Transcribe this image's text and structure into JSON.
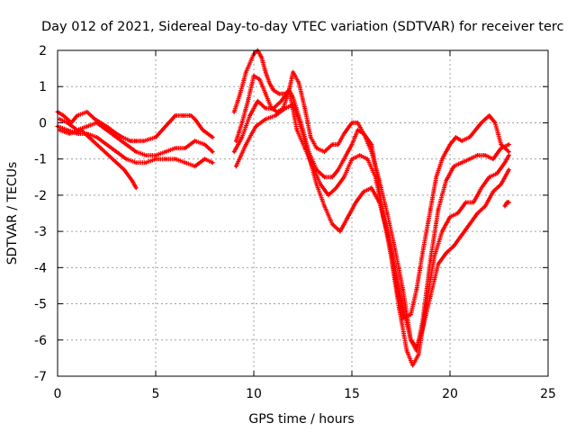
{
  "chart_data": {
    "type": "scatter",
    "title": "Day 012 of 2021, Sidereal Day-to-day VTEC variation (SDTVAR) for receiver terc",
    "xlabel": "GPS time / hours",
    "ylabel": "SDTVAR / TECUs",
    "xlim": [
      0,
      25
    ],
    "ylim": [
      -7,
      2
    ],
    "x_ticks": [
      0,
      5,
      10,
      15,
      20,
      25
    ],
    "y_ticks": [
      -7,
      -6,
      -5,
      -4,
      -3,
      -2,
      -1,
      0,
      1,
      2
    ],
    "grid": true,
    "marker": "+",
    "color": "#ff0000",
    "series": [
      {
        "x": [
          0.0,
          0.3,
          0.7,
          1.0,
          1.5,
          1.9,
          2.5,
          3.0,
          3.3,
          3.7,
          4.0,
          4.4,
          5.0,
          5.5,
          6.0,
          6.4,
          6.8,
          7.0,
          7.4,
          7.9
        ],
        "y": [
          0.3,
          0.2,
          0.0,
          0.2,
          0.3,
          0.1,
          -0.1,
          -0.3,
          -0.4,
          -0.5,
          -0.5,
          -0.5,
          -0.4,
          -0.1,
          0.2,
          0.2,
          0.2,
          0.1,
          -0.2,
          -0.4
        ]
      },
      {
        "x": [
          0.1,
          0.5,
          1.0,
          1.5,
          2.0,
          2.5,
          3.0,
          3.5,
          4.0,
          4.5,
          5.0,
          5.5,
          6.0,
          6.5,
          7.0,
          7.5,
          7.9
        ],
        "y": [
          0.1,
          0.0,
          -0.2,
          -0.1,
          0.0,
          -0.2,
          -0.4,
          -0.6,
          -0.8,
          -0.9,
          -0.9,
          -0.8,
          -0.7,
          -0.7,
          -0.5,
          -0.6,
          -0.8
        ]
      },
      {
        "x": [
          0.0,
          0.5,
          1.0,
          1.5,
          2.0,
          2.5,
          3.0,
          3.5,
          4.0,
          4.5,
          5.0,
          5.5,
          6.0,
          6.5,
          7.0,
          7.5,
          7.9
        ],
        "y": [
          -0.1,
          -0.2,
          -0.3,
          -0.3,
          -0.4,
          -0.6,
          -0.8,
          -1.0,
          -1.1,
          -1.1,
          -1.0,
          -1.0,
          -1.0,
          -1.1,
          -1.2,
          -1.0,
          -1.1
        ]
      },
      {
        "x": [
          0.1,
          0.6,
          1.2,
          1.8,
          2.4,
          3.0,
          3.4,
          3.8,
          4.0
        ],
        "y": [
          -0.2,
          -0.3,
          -0.2,
          -0.5,
          -0.8,
          -1.1,
          -1.3,
          -1.6,
          -1.8
        ]
      },
      {
        "x": [
          9.0,
          9.3,
          9.6,
          10.0,
          10.2,
          10.4,
          10.6,
          10.8,
          11.0,
          11.3,
          11.6,
          11.8,
          12.0,
          12.3,
          12.6,
          12.9,
          13.2,
          13.6,
          14.0,
          14.3,
          14.6,
          15.0,
          15.3,
          15.6,
          16.0,
          16.3,
          16.6,
          17.0,
          17.3,
          17.6,
          18.0,
          18.3,
          18.6,
          19.0,
          19.3,
          19.6,
          20.0,
          20.3,
          20.6,
          21.0,
          21.3,
          21.6,
          22.0,
          22.3,
          22.6,
          23.0
        ],
        "y": [
          0.3,
          0.8,
          1.4,
          1.9,
          2.0,
          1.8,
          1.4,
          1.1,
          0.9,
          0.8,
          0.8,
          0.9,
          1.4,
          1.1,
          0.4,
          -0.4,
          -0.7,
          -0.8,
          -0.6,
          -0.6,
          -0.3,
          0.0,
          0.0,
          -0.3,
          -0.6,
          -1.5,
          -2.6,
          -3.6,
          -4.6,
          -5.4,
          -5.3,
          -4.6,
          -3.6,
          -2.4,
          -1.5,
          -1.0,
          -0.6,
          -0.4,
          -0.5,
          -0.4,
          -0.2,
          0.0,
          0.2,
          0.0,
          -0.6,
          -0.8
        ]
      },
      {
        "x": [
          9.1,
          9.4,
          9.7,
          10.0,
          10.3,
          10.6,
          10.9,
          11.2,
          11.5,
          11.8,
          12.0,
          12.4,
          12.8,
          13.2,
          13.6,
          14.0,
          14.3,
          14.6,
          15.0,
          15.3,
          15.6,
          16.0,
          16.4,
          16.8,
          17.2,
          17.6,
          18.0,
          18.3,
          18.6,
          19.0,
          19.4,
          19.8,
          20.2,
          20.6,
          21.0,
          21.4,
          21.8,
          22.2,
          22.6,
          23.0
        ],
        "y": [
          -0.5,
          0.0,
          0.6,
          1.3,
          1.2,
          0.8,
          0.4,
          0.3,
          0.4,
          0.9,
          0.7,
          0.0,
          -0.8,
          -1.3,
          -1.5,
          -1.5,
          -1.3,
          -1.0,
          -0.6,
          -0.2,
          -0.3,
          -0.8,
          -1.6,
          -2.5,
          -3.5,
          -4.6,
          -6.0,
          -6.3,
          -5.5,
          -3.8,
          -2.4,
          -1.6,
          -1.2,
          -1.1,
          -1.0,
          -0.9,
          -0.9,
          -1.0,
          -0.7,
          -0.6
        ]
      },
      {
        "x": [
          9.0,
          9.4,
          9.8,
          10.2,
          10.6,
          11.0,
          11.4,
          11.8,
          12.2,
          12.6,
          13.0,
          13.4,
          13.8,
          14.2,
          14.6,
          15.0,
          15.4,
          15.8,
          16.2,
          16.6,
          17.0,
          17.4,
          17.8,
          18.1,
          18.4,
          18.8,
          19.2,
          19.6,
          20.0,
          20.4,
          20.8,
          21.2,
          21.6,
          22.0,
          22.4,
          22.8,
          23.0
        ],
        "y": [
          -0.8,
          -0.4,
          0.2,
          0.6,
          0.4,
          0.4,
          0.6,
          0.9,
          -0.2,
          -0.7,
          -1.2,
          -1.7,
          -2.0,
          -1.8,
          -1.5,
          -1.0,
          -0.9,
          -1.0,
          -1.5,
          -2.5,
          -3.7,
          -5.1,
          -6.3,
          -6.7,
          -6.4,
          -5.0,
          -3.7,
          -3.0,
          -2.6,
          -2.5,
          -2.2,
          -2.2,
          -1.8,
          -1.5,
          -1.4,
          -1.1,
          -0.9
        ]
      },
      {
        "x": [
          9.1,
          9.6,
          10.1,
          10.6,
          11.1,
          11.6,
          12.0,
          12.4,
          12.8,
          13.2,
          13.6,
          14.0,
          14.4,
          14.8,
          15.2,
          15.6,
          16.0,
          16.4,
          16.8,
          17.2,
          17.6,
          18.0,
          18.3,
          18.6,
          19.0,
          19.4,
          19.8,
          20.2,
          20.6,
          21.0,
          21.4,
          21.8,
          22.2,
          22.6,
          23.0
        ],
        "y": [
          -1.2,
          -0.6,
          -0.1,
          0.1,
          0.2,
          0.4,
          0.5,
          -0.1,
          -0.9,
          -1.7,
          -2.3,
          -2.8,
          -3.0,
          -2.6,
          -2.2,
          -1.9,
          -1.8,
          -2.2,
          -3.0,
          -4.0,
          -5.1,
          -6.0,
          -6.2,
          -5.7,
          -4.8,
          -3.9,
          -3.6,
          -3.4,
          -3.1,
          -2.8,
          -2.5,
          -2.3,
          -1.9,
          -1.7,
          -1.3
        ]
      },
      {
        "x": [
          22.8,
          22.9,
          23.0
        ],
        "y": [
          -2.3,
          -2.2,
          -2.2
        ]
      }
    ]
  }
}
